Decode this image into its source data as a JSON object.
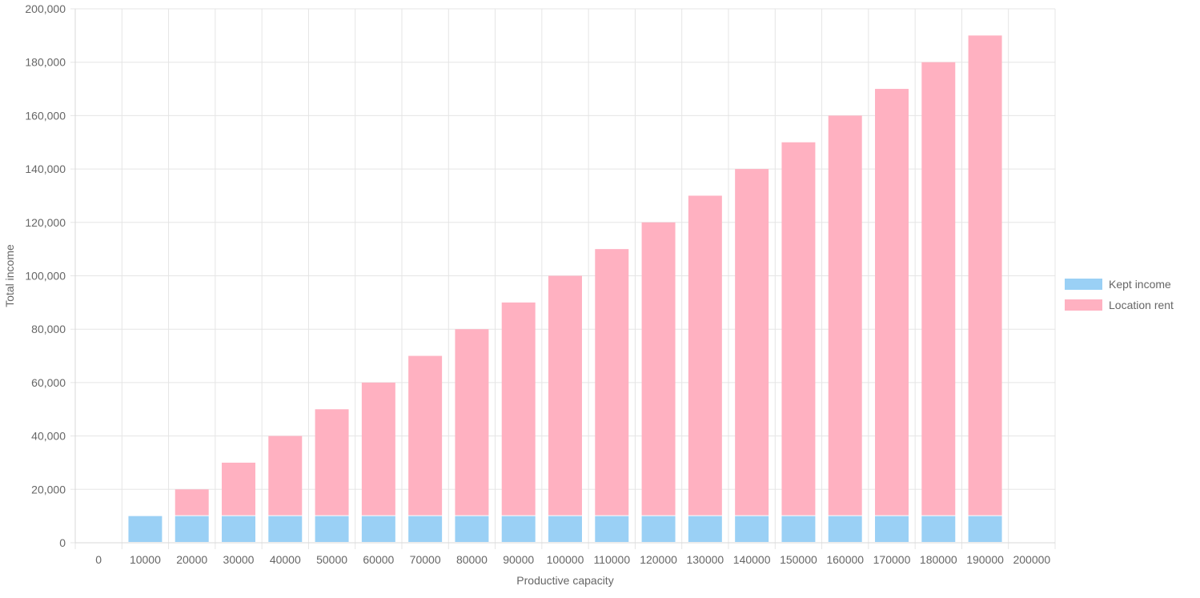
{
  "chart_data": {
    "type": "bar",
    "stacked": true,
    "categories": [
      "0",
      "10000",
      "20000",
      "30000",
      "40000",
      "50000",
      "60000",
      "70000",
      "80000",
      "90000",
      "100000",
      "110000",
      "120000",
      "130000",
      "140000",
      "150000",
      "160000",
      "170000",
      "180000",
      "190000",
      "200000"
    ],
    "series": [
      {
        "name": "Kept income",
        "color": "#9ad0f5",
        "values": [
          0,
          10000,
          10000,
          10000,
          10000,
          10000,
          10000,
          10000,
          10000,
          10000,
          10000,
          10000,
          10000,
          10000,
          10000,
          10000,
          10000,
          10000,
          10000,
          10000,
          0
        ]
      },
      {
        "name": "Location rent",
        "color": "#ffb1c1",
        "values": [
          0,
          0,
          10000,
          20000,
          30000,
          40000,
          50000,
          60000,
          70000,
          80000,
          90000,
          100000,
          110000,
          120000,
          130000,
          140000,
          150000,
          160000,
          170000,
          180000,
          0
        ]
      }
    ],
    "xlabel": "Productive capacity",
    "ylabel": "Total income",
    "ylim": [
      0,
      200000
    ],
    "yticks": [
      "0",
      "20,000",
      "40,000",
      "60,000",
      "80,000",
      "100,000",
      "120,000",
      "140,000",
      "160,000",
      "180,000",
      "200,000"
    ],
    "grid": true,
    "legend_position": "right"
  }
}
